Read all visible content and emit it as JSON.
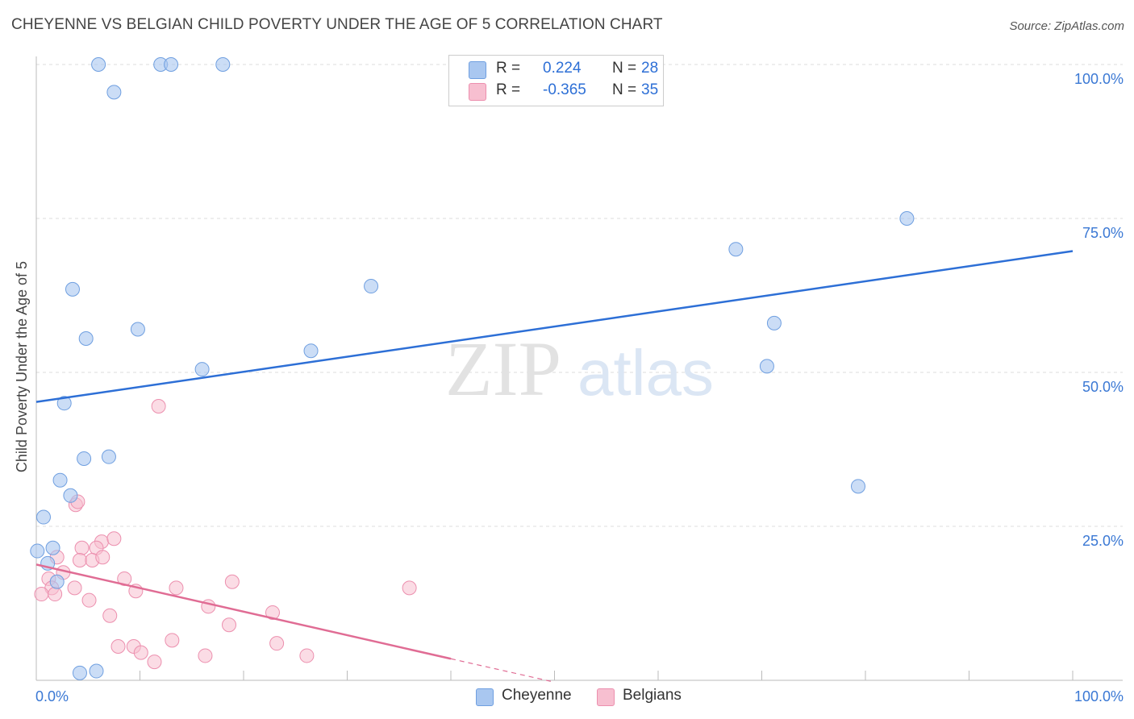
{
  "title": "CHEYENNE VS BELGIAN CHILD POVERTY UNDER THE AGE OF 5 CORRELATION CHART",
  "source": "Source: ZipAtlas.com",
  "watermark": {
    "zip": "ZIP",
    "atlas": "atlas"
  },
  "legend": {
    "rows": [
      {
        "r_label": "R =",
        "r_value": "0.224",
        "n_label": "N =",
        "n_value": "28",
        "color": "#a9c7f0",
        "stroke": "#6f9fe0"
      },
      {
        "r_label": "R =",
        "r_value": "-0.365",
        "n_label": "N =",
        "n_value": "35",
        "color": "#f7bfd0",
        "stroke": "#ec8fae"
      }
    ]
  },
  "chart_data": {
    "type": "scatter",
    "ylabel": "Child Poverty Under the Age of 5",
    "xlim": [
      0,
      100
    ],
    "ylim": [
      0,
      100
    ],
    "x_tick_labels": [
      "0.0%",
      "100.0%"
    ],
    "y_tick_labels": [
      "100.0%",
      "75.0%",
      "50.0%",
      "25.0%"
    ],
    "y_tick_values": [
      100,
      75,
      50,
      25
    ],
    "grid": true,
    "colors": {
      "cheyenne": "#a9c7f0",
      "cheyenne_line": "#2d6fd6",
      "belgians": "#f7bfd0",
      "belgians_line": "#e06c94"
    },
    "series": [
      {
        "name": "Cheyenne",
        "points": [
          [
            6,
            100
          ],
          [
            12,
            100
          ],
          [
            13,
            100
          ],
          [
            18,
            100
          ],
          [
            7.5,
            95.5
          ],
          [
            3.5,
            63.5
          ],
          [
            9.8,
            57
          ],
          [
            4.8,
            55.5
          ],
          [
            16,
            50.5
          ],
          [
            26.5,
            53.5
          ],
          [
            32.3,
            64
          ],
          [
            2.7,
            45
          ],
          [
            4.6,
            36
          ],
          [
            7,
            36.3
          ],
          [
            2.3,
            32.5
          ],
          [
            3.3,
            30
          ],
          [
            0.7,
            26.5
          ],
          [
            0.1,
            21
          ],
          [
            1.6,
            21.5
          ],
          [
            1.1,
            19
          ],
          [
            2.0,
            16
          ],
          [
            4.2,
            1.2
          ],
          [
            5.8,
            1.5
          ],
          [
            67.5,
            70
          ],
          [
            84,
            75
          ],
          [
            71.2,
            58
          ],
          [
            70.5,
            51
          ],
          [
            79.3,
            31.5
          ]
        ],
        "trend": {
          "x": [
            0,
            100
          ],
          "y": [
            45.2,
            69.7
          ]
        }
      },
      {
        "name": "Belgians",
        "points": [
          [
            11.8,
            44.5
          ],
          [
            3.8,
            28.5
          ],
          [
            4.0,
            29
          ],
          [
            6.3,
            22.5
          ],
          [
            7.5,
            23
          ],
          [
            4.4,
            21.5
          ],
          [
            5.8,
            21.5
          ],
          [
            2.0,
            20
          ],
          [
            4.2,
            19.5
          ],
          [
            5.4,
            19.5
          ],
          [
            6.4,
            20
          ],
          [
            2.6,
            17.5
          ],
          [
            1.2,
            16.5
          ],
          [
            8.5,
            16.5
          ],
          [
            1.5,
            15
          ],
          [
            3.7,
            15
          ],
          [
            13.5,
            15
          ],
          [
            18.9,
            16
          ],
          [
            36,
            15
          ],
          [
            0.5,
            14
          ],
          [
            1.8,
            14
          ],
          [
            9.6,
            14.5
          ],
          [
            5.1,
            13
          ],
          [
            16.6,
            12
          ],
          [
            22.8,
            11
          ],
          [
            7.1,
            10.5
          ],
          [
            18.6,
            9
          ],
          [
            13.1,
            6.5
          ],
          [
            7.9,
            5.5
          ],
          [
            9.4,
            5.5
          ],
          [
            10.1,
            4.5
          ],
          [
            23.2,
            6
          ],
          [
            16.3,
            4
          ],
          [
            26.1,
            4
          ],
          [
            11.4,
            3
          ]
        ],
        "trend": {
          "x": [
            0,
            40
          ],
          "y": [
            18.8,
            3.5
          ]
        },
        "trend_dashed": {
          "x": [
            40,
            50
          ],
          "y": [
            3.5,
            -0.3
          ]
        }
      }
    ]
  }
}
